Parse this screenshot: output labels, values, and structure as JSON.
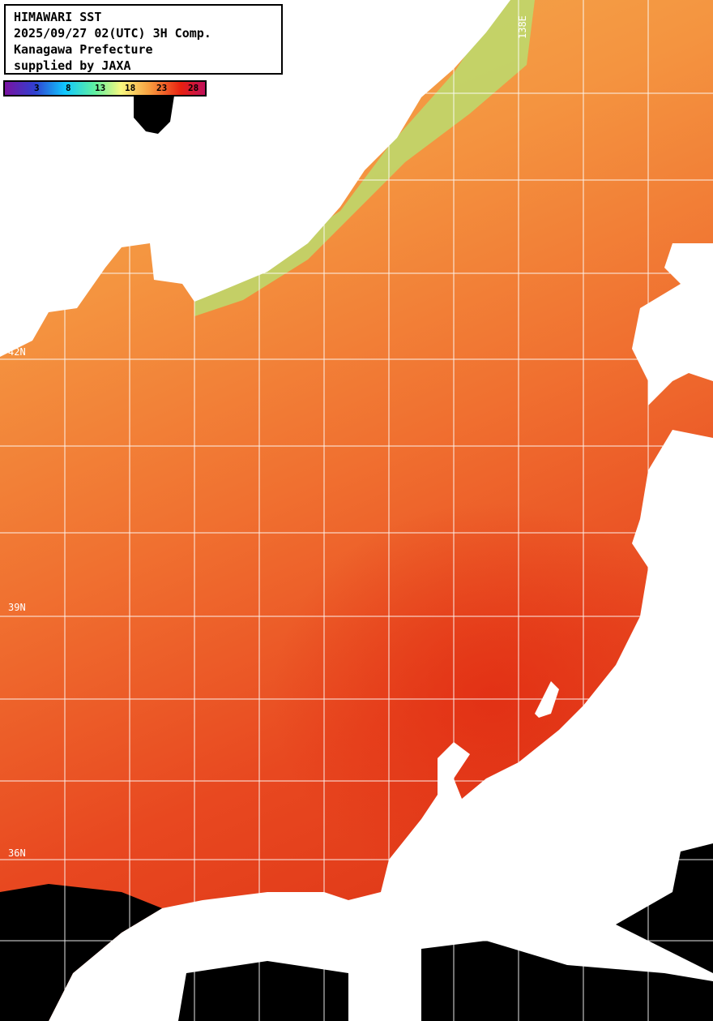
{
  "header": {
    "lines": [
      "HIMAWARI SST",
      "2025/09/27 02(UTC) 3H Comp.",
      "Kanagawa Prefecture",
      "supplied by JAXA"
    ]
  },
  "legend": {
    "ticks": [
      "3",
      "8",
      "13",
      "18",
      "23",
      "28"
    ],
    "colors": [
      "#7a12a0",
      "#3040d0",
      "#10c8ff",
      "#60f0a0",
      "#f8f880",
      "#f8a040",
      "#e82010",
      "#c0105a"
    ]
  },
  "graticule": {
    "lat_labels": [
      "42N",
      "39N",
      "36N"
    ],
    "lon_labels": [
      "138E"
    ]
  },
  "colors": {
    "land": "#ffffff",
    "no_data": "#000000",
    "grid": "#ffffff"
  }
}
